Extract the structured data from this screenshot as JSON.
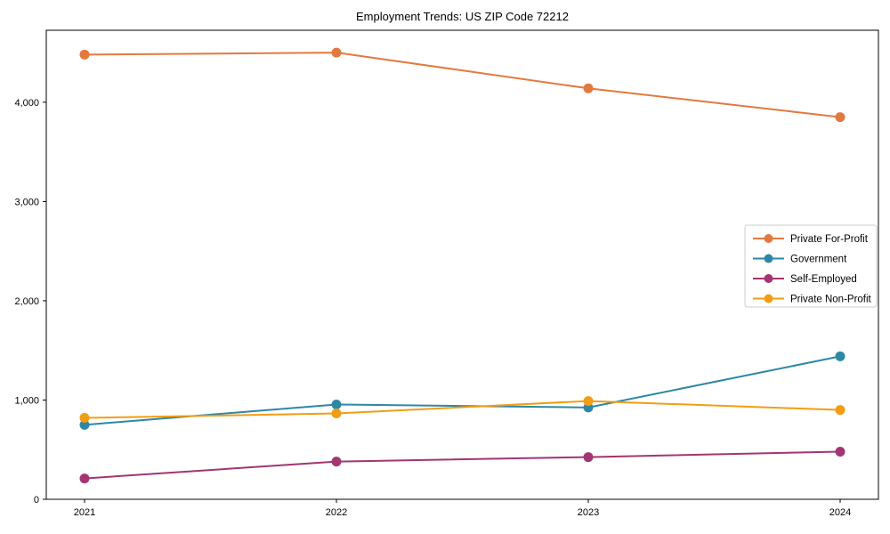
{
  "chart_data": {
    "type": "line",
    "title": "Employment Trends: US ZIP Code 72212",
    "categories": [
      "2021",
      "2022",
      "2023",
      "2024"
    ],
    "series": [
      {
        "name": "Private For-Profit",
        "color": "#e2793f",
        "values": [
          4480,
          4500,
          4140,
          3850
        ]
      },
      {
        "name": "Government",
        "color": "#2e87a5",
        "values": [
          750,
          955,
          925,
          1440
        ]
      },
      {
        "name": "Self-Employed",
        "color": "#a23572",
        "values": [
          210,
          380,
          425,
          480
        ]
      },
      {
        "name": "Private Non-Profit",
        "color": "#f29d13",
        "values": [
          820,
          865,
          990,
          900
        ]
      }
    ],
    "xlabel": "",
    "ylabel": "",
    "ylim": [
      0,
      4725
    ],
    "yticks": [
      0,
      1000,
      2000,
      3000,
      4000
    ],
    "ytick_labels": [
      "0",
      "1,000",
      "2,000",
      "3,000",
      "4,000"
    ],
    "grid": false,
    "marker": "circle",
    "legend_position": "right-middle",
    "axis_color": "#000000",
    "legend_border_color": "#cccccc",
    "legend_background": "#ffffff"
  }
}
